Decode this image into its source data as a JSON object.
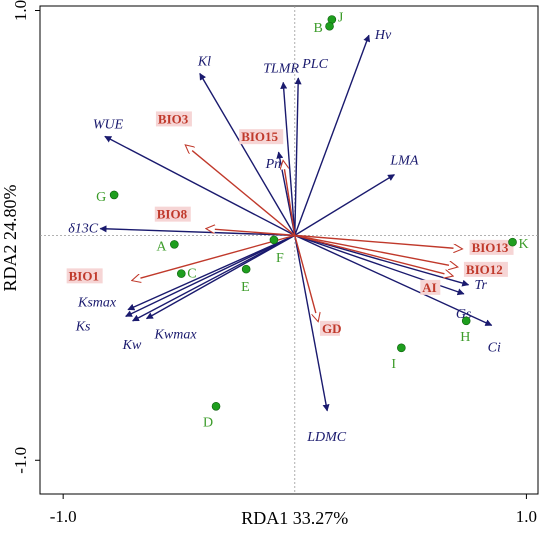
{
  "chart_data": {
    "type": "scatter",
    "subtype": "rda-biplot",
    "xlabel": "RDA1 33.27%",
    "ylabel": "RDA2 24.80%",
    "xlim": [
      -1.1,
      1.05
    ],
    "ylim": [
      -1.15,
      1.02
    ],
    "x_ticks": [
      {
        "value": -1.0,
        "label": "-1.0"
      },
      {
        "value": 1.0,
        "label": "1.0"
      }
    ],
    "y_ticks": [
      {
        "value": 1.0,
        "label": "1.0"
      },
      {
        "value": -1.0,
        "label": "-1.0"
      }
    ],
    "zero_lines": true,
    "colors": {
      "trait_arrow": "#1a1a6e",
      "env_arrow": "#c0392b",
      "env_label_bg": "#f6d5d5",
      "site_point": "#1e9e1e",
      "site_label": "#3c9c2a",
      "zero_line": "#999999"
    },
    "trait_vectors": [
      {
        "name": "Hv",
        "x": 0.32,
        "y": 0.89
      },
      {
        "name": "Kl",
        "x": -0.41,
        "y": 0.72
      },
      {
        "name": "PLC",
        "x": 0.015,
        "y": 0.7
      },
      {
        "name": "TLMR",
        "x": -0.05,
        "y": 0.68
      },
      {
        "name": "WUE",
        "x": -0.82,
        "y": 0.44
      },
      {
        "name": "LMA",
        "x": 0.43,
        "y": 0.27
      },
      {
        "name": "Pn",
        "x": -0.07,
        "y": 0.37
      },
      {
        "name": "δ13C",
        "x": -0.84,
        "y": 0.03
      },
      {
        "name": "Ksmax",
        "x": -0.72,
        "y": -0.33
      },
      {
        "name": "Ks",
        "x": -0.73,
        "y": -0.36
      },
      {
        "name": "Kwmax",
        "x": -0.64,
        "y": -0.37
      },
      {
        "name": "Kw",
        "x": -0.7,
        "y": -0.38
      },
      {
        "name": "Tr",
        "x": 0.75,
        "y": -0.22
      },
      {
        "name": "Gs",
        "x": 0.73,
        "y": -0.26
      },
      {
        "name": "Ci",
        "x": 0.85,
        "y": -0.4
      },
      {
        "name": "LDMC",
        "x": 0.14,
        "y": -0.78
      }
    ],
    "env_vectors": [
      {
        "name": "BIO3",
        "x": -0.47,
        "y": 0.4
      },
      {
        "name": "BIO15",
        "x": -0.05,
        "y": 0.33
      },
      {
        "name": "BIO8",
        "x": -0.38,
        "y": 0.03
      },
      {
        "name": "BIO1",
        "x": -0.7,
        "y": -0.2
      },
      {
        "name": "BIO13",
        "x": 0.72,
        "y": -0.06
      },
      {
        "name": "BIO12",
        "x": 0.7,
        "y": -0.14
      },
      {
        "name": "AI",
        "x": 0.68,
        "y": -0.18
      },
      {
        "name": "GD",
        "x": 0.1,
        "y": -0.38
      }
    ],
    "sites": [
      {
        "name": "J",
        "x": 0.16,
        "y": 0.96
      },
      {
        "name": "B",
        "x": 0.15,
        "y": 0.93
      },
      {
        "name": "G",
        "x": -0.78,
        "y": 0.18
      },
      {
        "name": "K",
        "x": 0.94,
        "y": -0.03
      },
      {
        "name": "A",
        "x": -0.52,
        "y": -0.04
      },
      {
        "name": "F",
        "x": -0.09,
        "y": -0.02
      },
      {
        "name": "C",
        "x": -0.49,
        "y": -0.17
      },
      {
        "name": "E",
        "x": -0.21,
        "y": -0.15
      },
      {
        "name": "H",
        "x": 0.74,
        "y": -0.38
      },
      {
        "name": "I",
        "x": 0.46,
        "y": -0.5
      },
      {
        "name": "D",
        "x": -0.34,
        "y": -0.76
      }
    ]
  }
}
